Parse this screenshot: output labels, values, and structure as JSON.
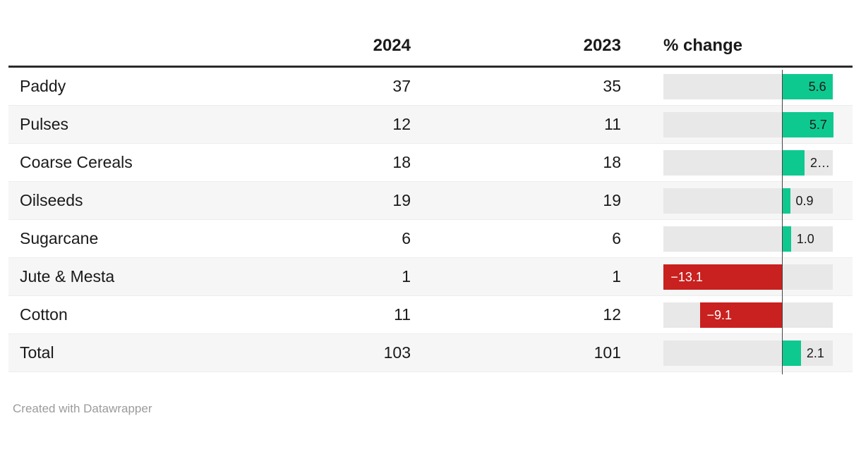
{
  "header": {
    "col_2024": "2024",
    "col_2023": "2023",
    "col_change": "% change"
  },
  "rows": [
    {
      "name": "Paddy",
      "v2024": "37",
      "v2023": "35",
      "change": 5.6,
      "change_label": "5.6"
    },
    {
      "name": "Pulses",
      "v2024": "12",
      "v2023": "11",
      "change": 5.7,
      "change_label": "5.7"
    },
    {
      "name": "Coarse Cereals",
      "v2024": "18",
      "v2023": "18",
      "change": 2.5,
      "change_label": "2…"
    },
    {
      "name": "Oilseeds",
      "v2024": "19",
      "v2023": "19",
      "change": 0.9,
      "change_label": "0.9"
    },
    {
      "name": "Sugarcane",
      "v2024": "6",
      "v2023": "6",
      "change": 1.0,
      "change_label": "1.0"
    },
    {
      "name": "Jute & Mesta",
      "v2024": "1",
      "v2023": "1",
      "change": -13.1,
      "change_label": "−13.1"
    },
    {
      "name": "Cotton",
      "v2024": "11",
      "v2023": "12",
      "change": -9.1,
      "change_label": "−9.1"
    },
    {
      "name": "Total",
      "v2024": "103",
      "v2023": "101",
      "change": 2.1,
      "change_label": "2.1"
    }
  ],
  "footer": {
    "credit": "Created with Datawrapper"
  },
  "colors": {
    "positive": "#0ec98f",
    "negative": "#c8211f",
    "bar_background": "#e8e8e8",
    "alt_row_background": "#f6f6f6",
    "header_rule": "#2b2b2b",
    "axis_line": "#444444"
  },
  "chart_data": {
    "type": "table",
    "title": "",
    "columns": [
      "",
      "2024",
      "2023",
      "% change"
    ],
    "rows": [
      [
        "Paddy",
        37,
        35,
        5.6
      ],
      [
        "Pulses",
        12,
        11,
        5.7
      ],
      [
        "Coarse Cereals",
        18,
        18,
        2.5
      ],
      [
        "Oilseeds",
        19,
        19,
        0.9
      ],
      [
        "Sugarcane",
        6,
        6,
        1.0
      ],
      [
        "Jute & Mesta",
        1,
        1,
        -13.1
      ],
      [
        "Cotton",
        11,
        12,
        -9.1
      ],
      [
        "Total",
        103,
        101,
        2.1
      ]
    ],
    "bar_column": "% change",
    "bar_axis_range": [
      -13.1,
      5.7
    ],
    "zero_line": true,
    "positive_color": "#0ec98f",
    "negative_color": "#c8211f"
  }
}
